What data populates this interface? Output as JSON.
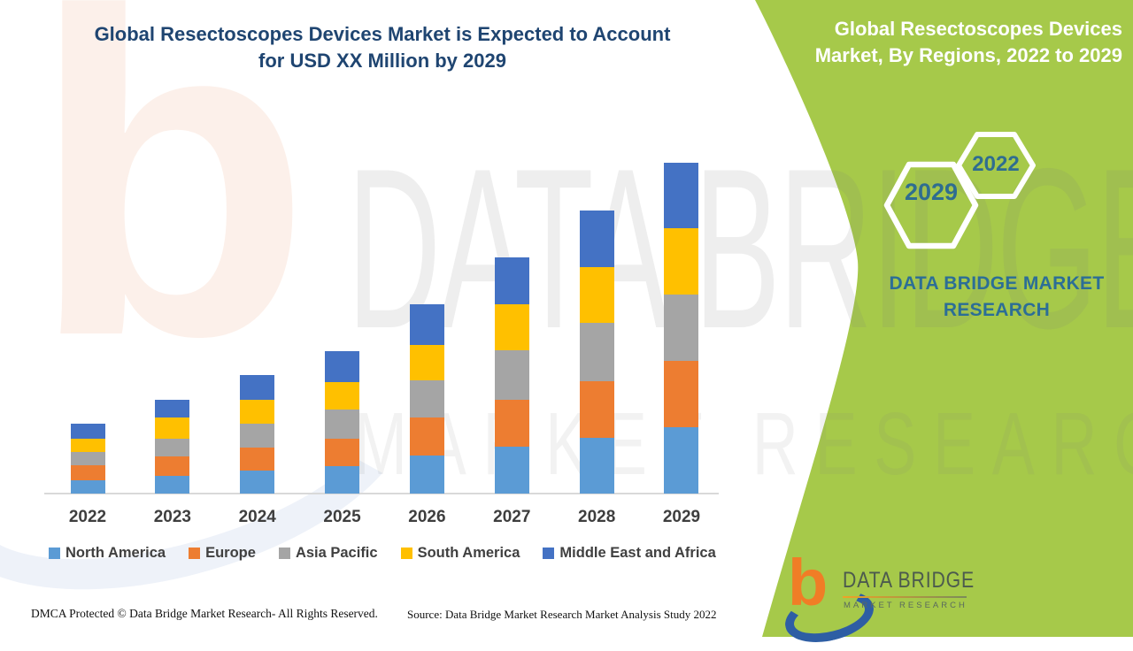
{
  "page": {
    "background": "#FFFFFF",
    "accent_green": "#A6C94A"
  },
  "header": {
    "title_line1": "Global Resectoscopes Devices Market is Expected to Account",
    "title_line2": "for USD XX Million by 2029",
    "title_color": "#1F4571"
  },
  "side_panel": {
    "title_line1": "Global Resectoscopes Devices",
    "title_line2": "Market, By Regions, 2022 to 2029",
    "hexagon_back_label": "2029",
    "hexagon_front_label": "2022",
    "hex_label_color": "#2F6D90",
    "brand_line1": "DATA BRIDGE MARKET",
    "brand_line2": "RESEARCH",
    "brand_text_color": "#2C6E96"
  },
  "watermark": {
    "line1": "DATA BRIDGE",
    "line2": "MARKET RESEARCH"
  },
  "logo": {
    "brand_name": "DATA BRIDGE",
    "brand_subtitle": "MARKET RESEARCH",
    "b_color": "#F07D26",
    "swoosh_color": "#2E5EA4"
  },
  "footer": {
    "dmca_text": "DMCA Protected © Data Bridge Market Research- All Rights Reserved.",
    "source_text": "Source: Data Bridge Market Research Market Analysis Study 2022"
  },
  "chart_data": {
    "type": "bar",
    "stacked": true,
    "title": "Global Resectoscopes Devices Market, By Regions, 2022 to 2029",
    "xlabel": "",
    "ylabel": "",
    "value_axis_visible": false,
    "units": "relative height units (USD Million values not labeled, shown as XX)",
    "legend_position": "bottom",
    "categories": [
      "2022",
      "2023",
      "2024",
      "2025",
      "2026",
      "2027",
      "2028",
      "2029"
    ],
    "series": [
      {
        "name": "North America",
        "color": "#5B9BD5",
        "values": [
          15,
          20,
          26,
          31,
          43,
          53,
          63,
          75
        ]
      },
      {
        "name": "Europe",
        "color": "#ED7D31",
        "values": [
          17,
          22,
          26,
          31,
          43,
          53,
          64,
          75
        ]
      },
      {
        "name": "Asia Pacific",
        "color": "#A5A5A5",
        "values": [
          15,
          20,
          27,
          33,
          42,
          56,
          66,
          75
        ]
      },
      {
        "name": "South America",
        "color": "#FFC000",
        "values": [
          15,
          24,
          27,
          31,
          40,
          52,
          63,
          75
        ]
      },
      {
        "name": "Middle East and Africa",
        "color": "#4472C4",
        "values": [
          17,
          20,
          28,
          35,
          46,
          53,
          64,
          74
        ]
      }
    ],
    "totals": [
      79,
      106,
      134,
      161,
      214,
      267,
      320,
      374
    ]
  }
}
